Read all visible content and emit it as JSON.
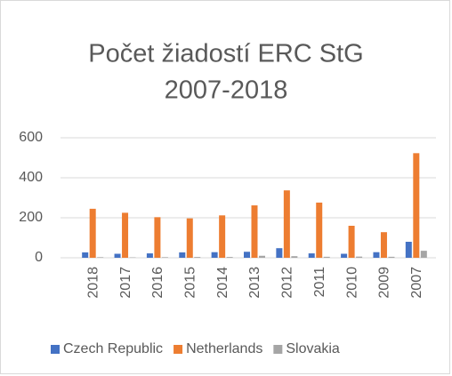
{
  "chart_data": {
    "type": "bar",
    "title": [
      "Počet žiadostí ERC StG",
      "2007-2018"
    ],
    "categories": [
      "2018",
      "2017",
      "2016",
      "2015",
      "2014",
      "2013",
      "2012",
      "2011",
      "2010",
      "2009",
      "2007"
    ],
    "series": [
      {
        "name": "Czech Republic",
        "color": "#4472c4",
        "values": [
          27,
          20,
          22,
          27,
          28,
          30,
          48,
          22,
          20,
          28,
          80
        ]
      },
      {
        "name": "Netherlands",
        "color": "#ed7d31",
        "values": [
          245,
          225,
          203,
          197,
          212,
          262,
          337,
          276,
          160,
          128,
          523
        ]
      },
      {
        "name": "Slovakia",
        "color": "#a5a5a5",
        "values": [
          3,
          2,
          3,
          4,
          4,
          10,
          8,
          5,
          6,
          5,
          35
        ]
      }
    ],
    "ylim": [
      0,
      600
    ],
    "yticks": [
      0,
      200,
      400,
      600
    ],
    "grid": true,
    "legend": "bottom"
  }
}
